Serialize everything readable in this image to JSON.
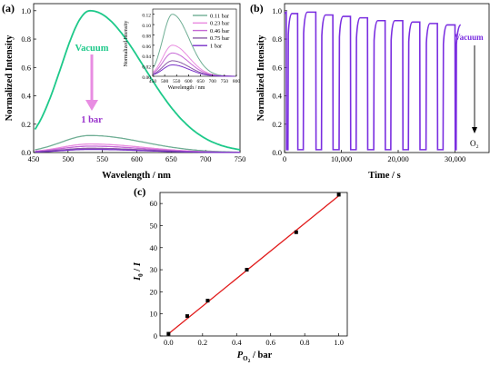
{
  "panels": {
    "a": "(a)",
    "b": "(b)",
    "c": "(c)"
  },
  "colors": {
    "vacuum": "#1ec98a",
    "p011": "#6fae94",
    "p023": "#e98be0",
    "p046": "#c668d6",
    "p075": "#8a5aa6",
    "p1": "#7a32c8",
    "arrow": "#e88de2",
    "label_1bar": "#9933cc",
    "series_b": "#7a2ee0",
    "fit_c": "#e11b1b"
  },
  "chart_data": [
    {
      "id": "a",
      "type": "line",
      "xlabel": "Wavelength / nm",
      "ylabel": "Normalized Intensity",
      "xlim": [
        450,
        750
      ],
      "ylim": [
        0,
        1.05
      ],
      "xticks": [
        "450",
        "500",
        "550",
        "600",
        "650",
        "700",
        "750"
      ],
      "yticks": [
        "0.0",
        "0.2",
        "0.4",
        "0.6",
        "0.8",
        "1.0"
      ],
      "annotations": [
        "Vacuum",
        "1 bar"
      ],
      "series": [
        {
          "name": "Vacuum",
          "peak_nm": 532,
          "peak_value": 1.0
        },
        {
          "name": "0.11 bar",
          "peak_nm": 532,
          "peak_value": 0.12
        },
        {
          "name": "0.23 bar",
          "peak_nm": 532,
          "peak_value": 0.06
        },
        {
          "name": "0.46 bar",
          "peak_nm": 532,
          "peak_value": 0.045
        },
        {
          "name": "0.75 bar",
          "peak_nm": 532,
          "peak_value": 0.03
        },
        {
          "name": "1 bar",
          "peak_nm": 532,
          "peak_value": 0.022
        }
      ],
      "inset": {
        "xlabel": "Wavelength / nm",
        "ylabel": "Normalized Intensity",
        "xlim": [
          450,
          800
        ],
        "ylim": [
          0,
          0.13
        ],
        "xticks": [
          "450",
          "500",
          "550",
          "600",
          "650",
          "700",
          "750",
          "800"
        ],
        "yticks": [
          "0.00",
          "0.02",
          "0.04",
          "0.06",
          "0.08",
          "0.10",
          "0.12"
        ],
        "legend": [
          "0.11 bar",
          "0.23 bar",
          "0.46 bar",
          "0.75 bar",
          "1 bar"
        ],
        "legend_position": "top-right"
      }
    },
    {
      "id": "b",
      "type": "line",
      "xlabel": "Time / s",
      "ylabel": "Normalized Intensity",
      "xlim": [
        0,
        36000
      ],
      "ylim": [
        0,
        1.05
      ],
      "xticks": [
        "0",
        "10,000",
        "20,000",
        "30,000"
      ],
      "yticks": [
        "0.0",
        "0.2",
        "0.4",
        "0.6",
        "0.8",
        "1.0"
      ],
      "annotations": [
        "Vacuum",
        "O₂"
      ],
      "cycles": [
        {
          "t_on": 600,
          "t_off": 2300,
          "max": 0.98
        },
        {
          "t_on": 3300,
          "t_off": 5500,
          "max": 0.99
        },
        {
          "t_on": 6500,
          "t_off": 8500,
          "max": 0.97
        },
        {
          "t_on": 9600,
          "t_off": 11600,
          "max": 0.96
        },
        {
          "t_on": 12600,
          "t_off": 14600,
          "max": 0.95
        },
        {
          "t_on": 15700,
          "t_off": 17700,
          "max": 0.93
        },
        {
          "t_on": 18700,
          "t_off": 20800,
          "max": 0.93
        },
        {
          "t_on": 21800,
          "t_off": 23800,
          "max": 0.92
        },
        {
          "t_on": 24900,
          "t_off": 26900,
          "max": 0.91
        },
        {
          "t_on": 27900,
          "t_off": 30000,
          "max": 0.9
        }
      ],
      "baseline": 0.02
    },
    {
      "id": "c",
      "type": "scatter",
      "xlabel": "P_O2 / bar",
      "ylabel": "I0 / I",
      "xlim": [
        -0.05,
        1.05
      ],
      "ylim": [
        0,
        65
      ],
      "xticks": [
        "0.0",
        "0.2",
        "0.4",
        "0.6",
        "0.8",
        "1.0"
      ],
      "yticks": [
        "0",
        "10",
        "20",
        "30",
        "40",
        "50",
        "60"
      ],
      "x": [
        0,
        0.11,
        0.23,
        0.46,
        0.75,
        1.0
      ],
      "y": [
        1,
        9,
        16,
        30,
        47,
        64
      ],
      "fit": {
        "x": [
          0,
          1.0
        ],
        "y": [
          1,
          63.5
        ]
      }
    }
  ]
}
